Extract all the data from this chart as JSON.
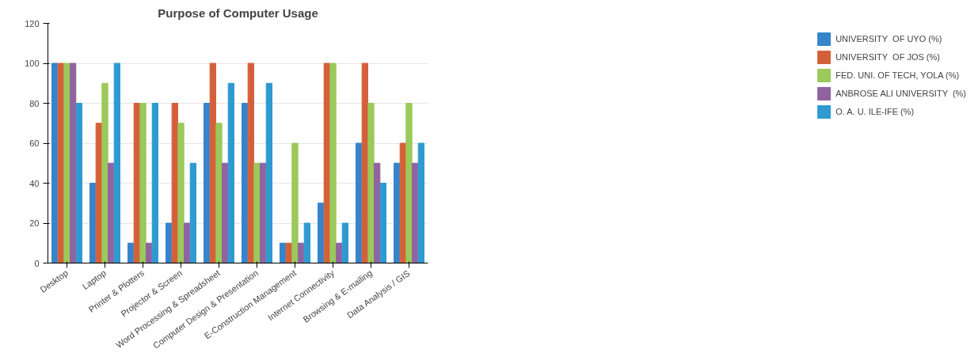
{
  "chart_data": {
    "type": "bar",
    "title": "Purpose of Computer Usage",
    "categories": [
      "Desktop",
      "Laptop",
      "Printer & Plotters",
      "Projector & Screen",
      "Word Processing & Spreadsheet",
      "Computer Design & Presentation",
      "E-Construction Management",
      "Internet Connectivity",
      "Browsing & E-mailing",
      "Data Analysis / GIS"
    ],
    "series": [
      {
        "name": "UNIVERSITY  OF UYO (%)",
        "color": "#3584cc",
        "values": [
          100,
          40,
          10,
          20,
          80,
          80,
          10,
          30,
          60,
          50
        ]
      },
      {
        "name": "UNIVERSITY  OF JOS (%)",
        "color": "#d4603a",
        "values": [
          100,
          70,
          80,
          80,
          100,
          100,
          10,
          100,
          100,
          60
        ]
      },
      {
        "name": "FED. UNI. OF TECH, YOLA (%)",
        "color": "#9bc95a",
        "values": [
          100,
          90,
          80,
          70,
          70,
          50,
          60,
          100,
          80,
          80
        ]
      },
      {
        "name": "ANBROSE ALI UNIVERSITY  (%)",
        "color": "#8f64a0",
        "values": [
          100,
          50,
          10,
          20,
          50,
          50,
          10,
          10,
          50,
          50
        ]
      },
      {
        "name": "O. A. U. ILE-IFE (%)",
        "color": "#2e9ad0",
        "values": [
          80,
          100,
          80,
          50,
          90,
          90,
          20,
          20,
          40,
          60
        ]
      }
    ],
    "ylim": [
      0,
      120
    ],
    "yticks": [
      0,
      20,
      40,
      60,
      80,
      100,
      120
    ],
    "grid": "y",
    "legend": "right"
  }
}
